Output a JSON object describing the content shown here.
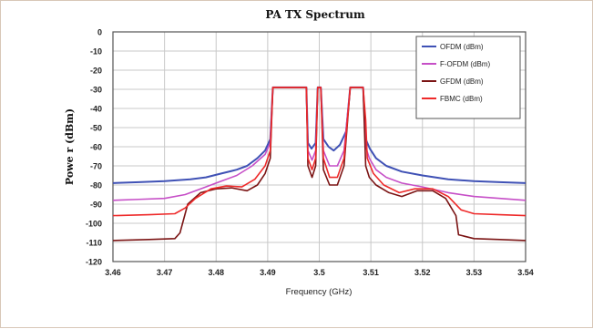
{
  "chart_data": {
    "type": "line",
    "title": "PA TX Spectrum",
    "xlabel": "Frequency (GHz)",
    "ylabel": "Powe r (dBm)",
    "xlim": [
      3.46,
      3.54
    ],
    "ylim": [
      -120,
      0
    ],
    "x_ticks": [
      3.46,
      3.47,
      3.48,
      3.49,
      3.5,
      3.51,
      3.52,
      3.53,
      3.54
    ],
    "x_tick_labels": [
      "3.46",
      "3.47",
      "3.48",
      "3.49",
      "3.5",
      "3.51",
      "3.52",
      "3.53",
      "3.54"
    ],
    "y_ticks": [
      0,
      -10,
      -20,
      -30,
      -40,
      -50,
      -60,
      -70,
      -80,
      -90,
      -100,
      -110,
      -120
    ],
    "y_tick_labels": [
      "0",
      "-10",
      "-20",
      "-30",
      "-40",
      "-50",
      "-60",
      "-70",
      "-80",
      "-90",
      "-100",
      "-110",
      "-120"
    ],
    "grid": true,
    "legend_position": "top-right",
    "series": [
      {
        "name": "OFDM (dBm)",
        "color": "#3f51b5",
        "points": [
          [
            3.46,
            -79
          ],
          [
            3.465,
            -78.5
          ],
          [
            3.47,
            -78
          ],
          [
            3.475,
            -77
          ],
          [
            3.478,
            -76
          ],
          [
            3.481,
            -74
          ],
          [
            3.484,
            -72
          ],
          [
            3.486,
            -70
          ],
          [
            3.488,
            -66
          ],
          [
            3.4895,
            -62
          ],
          [
            3.4905,
            -56
          ],
          [
            3.491,
            -29
          ],
          [
            3.4975,
            -29
          ],
          [
            3.4978,
            -58
          ],
          [
            3.4985,
            -61
          ],
          [
            3.4993,
            -58
          ],
          [
            3.4997,
            -29
          ],
          [
            3.5003,
            -29
          ],
          [
            3.5008,
            -56
          ],
          [
            3.5018,
            -60
          ],
          [
            3.5028,
            -62
          ],
          [
            3.504,
            -59
          ],
          [
            3.5052,
            -52
          ],
          [
            3.506,
            -29
          ],
          [
            3.5085,
            -29
          ],
          [
            3.509,
            -56
          ],
          [
            3.5098,
            -61
          ],
          [
            3.511,
            -66
          ],
          [
            3.513,
            -70
          ],
          [
            3.516,
            -73
          ],
          [
            3.52,
            -75
          ],
          [
            3.525,
            -77
          ],
          [
            3.53,
            -78
          ],
          [
            3.535,
            -78.5
          ],
          [
            3.54,
            -79
          ]
        ]
      },
      {
        "name": "F-OFDM (dBm)",
        "color": "#c64fc7",
        "points": [
          [
            3.46,
            -88
          ],
          [
            3.465,
            -87.5
          ],
          [
            3.47,
            -87
          ],
          [
            3.474,
            -85
          ],
          [
            3.477,
            -82
          ],
          [
            3.48,
            -79
          ],
          [
            3.484,
            -75
          ],
          [
            3.487,
            -70
          ],
          [
            3.4895,
            -64
          ],
          [
            3.4905,
            -58
          ],
          [
            3.491,
            -29
          ],
          [
            3.4975,
            -29
          ],
          [
            3.4978,
            -62
          ],
          [
            3.4986,
            -67
          ],
          [
            3.4993,
            -62
          ],
          [
            3.4997,
            -29
          ],
          [
            3.5003,
            -29
          ],
          [
            3.5008,
            -62
          ],
          [
            3.502,
            -70
          ],
          [
            3.5035,
            -70
          ],
          [
            3.5048,
            -62
          ],
          [
            3.506,
            -29
          ],
          [
            3.5085,
            -29
          ],
          [
            3.509,
            -60
          ],
          [
            3.5097,
            -66
          ],
          [
            3.511,
            -72
          ],
          [
            3.513,
            -76
          ],
          [
            3.516,
            -79
          ],
          [
            3.52,
            -81
          ],
          [
            3.525,
            -84
          ],
          [
            3.53,
            -86
          ],
          [
            3.535,
            -87
          ],
          [
            3.54,
            -88
          ]
        ]
      },
      {
        "name": "GFDM (dBm)",
        "color": "#7b1414",
        "points": [
          [
            3.46,
            -109
          ],
          [
            3.467,
            -108.5
          ],
          [
            3.472,
            -108
          ],
          [
            3.473,
            -105
          ],
          [
            3.4745,
            -90
          ],
          [
            3.477,
            -84
          ],
          [
            3.48,
            -82
          ],
          [
            3.483,
            -81.5
          ],
          [
            3.486,
            -83
          ],
          [
            3.488,
            -80
          ],
          [
            3.4895,
            -74
          ],
          [
            3.4905,
            -66
          ],
          [
            3.491,
            -29
          ],
          [
            3.4975,
            -29
          ],
          [
            3.4978,
            -70
          ],
          [
            3.4986,
            -76
          ],
          [
            3.4993,
            -70
          ],
          [
            3.4997,
            -29
          ],
          [
            3.5003,
            -29
          ],
          [
            3.5008,
            -72
          ],
          [
            3.502,
            -80
          ],
          [
            3.5035,
            -80
          ],
          [
            3.5048,
            -70
          ],
          [
            3.506,
            -29
          ],
          [
            3.5085,
            -29
          ],
          [
            3.509,
            -70
          ],
          [
            3.5097,
            -76
          ],
          [
            3.511,
            -80
          ],
          [
            3.5135,
            -84
          ],
          [
            3.516,
            -86
          ],
          [
            3.519,
            -83
          ],
          [
            3.522,
            -83
          ],
          [
            3.5245,
            -87
          ],
          [
            3.5265,
            -96
          ],
          [
            3.527,
            -106
          ],
          [
            3.53,
            -108
          ],
          [
            3.535,
            -108.5
          ],
          [
            3.54,
            -109
          ]
        ]
      },
      {
        "name": "FBMC (dBm)",
        "color": "#ee2a2a",
        "points": [
          [
            3.46,
            -96
          ],
          [
            3.467,
            -95.5
          ],
          [
            3.472,
            -95
          ],
          [
            3.474,
            -92
          ],
          [
            3.476,
            -87
          ],
          [
            3.479,
            -82
          ],
          [
            3.482,
            -80.5
          ],
          [
            3.485,
            -81
          ],
          [
            3.4875,
            -77
          ],
          [
            3.4895,
            -70
          ],
          [
            3.4905,
            -62
          ],
          [
            3.491,
            -29
          ],
          [
            3.4975,
            -29
          ],
          [
            3.4978,
            -66
          ],
          [
            3.4986,
            -72
          ],
          [
            3.4993,
            -66
          ],
          [
            3.4997,
            -29
          ],
          [
            3.5003,
            -29
          ],
          [
            3.5008,
            -66
          ],
          [
            3.502,
            -76
          ],
          [
            3.5035,
            -76
          ],
          [
            3.5048,
            -66
          ],
          [
            3.506,
            -29
          ],
          [
            3.5085,
            -29
          ],
          [
            3.509,
            -46
          ],
          [
            3.5093,
            -66
          ],
          [
            3.5105,
            -74
          ],
          [
            3.5125,
            -80
          ],
          [
            3.5155,
            -84
          ],
          [
            3.5185,
            -82
          ],
          [
            3.522,
            -82
          ],
          [
            3.525,
            -86
          ],
          [
            3.5275,
            -93
          ],
          [
            3.53,
            -95
          ],
          [
            3.535,
            -95.5
          ],
          [
            3.54,
            -96
          ]
        ]
      }
    ]
  }
}
